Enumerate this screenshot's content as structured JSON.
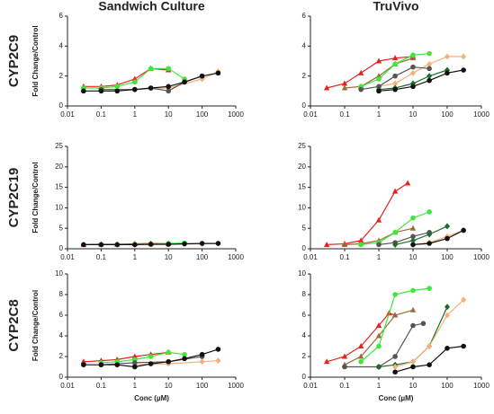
{
  "chart_data": [
    {
      "type": "line",
      "title": "Sandwich Culture",
      "row_label": "CYP2C9",
      "ylabel": "Fold Change/Control",
      "log_x": true,
      "xlim": [
        0.01,
        1000
      ],
      "xticks": [
        0.01,
        0.1,
        1,
        10,
        100,
        1000
      ],
      "ylim": [
        0,
        6
      ],
      "yticks": [
        0,
        2,
        4,
        6
      ],
      "series": [
        {
          "color": "#e8231f",
          "marker": "triangle",
          "x": [
            0.03,
            0.1,
            0.3,
            1,
            3,
            10
          ],
          "values": [
            1.3,
            1.3,
            1.4,
            1.8,
            2.5,
            2.4
          ]
        },
        {
          "color": "#3ee83a",
          "marker": "circle",
          "x": [
            0.03,
            0.1,
            0.3,
            1,
            3,
            10,
            30
          ],
          "values": [
            1.2,
            1.2,
            1.3,
            1.6,
            2.5,
            2.5,
            1.8
          ]
        },
        {
          "color": "#f4b27a",
          "marker": "diamond",
          "x": [
            0.1,
            1,
            10,
            100,
            300
          ],
          "values": [
            1.1,
            1.1,
            1.2,
            1.8,
            2.3
          ]
        },
        {
          "color": "#555555",
          "marker": "circle",
          "x": [
            0.1,
            1,
            3,
            10,
            30,
            100
          ],
          "values": [
            1.1,
            1.1,
            1.2,
            1.0,
            1.6,
            2.0
          ]
        },
        {
          "color": "#111111",
          "marker": "circle",
          "x": [
            0.03,
            0.1,
            0.3,
            1,
            3,
            10,
            30,
            100,
            300
          ],
          "values": [
            1.0,
            1.0,
            1.0,
            1.1,
            1.2,
            1.3,
            1.6,
            2.0,
            2.2
          ]
        }
      ]
    },
    {
      "type": "line",
      "title": "TruVivo",
      "log_x": true,
      "xlim": [
        0.01,
        1000
      ],
      "xticks": [
        0.01,
        0.1,
        1,
        10,
        100,
        1000
      ],
      "ylim": [
        0,
        6
      ],
      "yticks": [
        0,
        2,
        4,
        6
      ],
      "series": [
        {
          "color": "#e8231f",
          "marker": "triangle",
          "x": [
            0.03,
            0.1,
            0.3,
            1,
            3,
            10
          ],
          "values": [
            1.2,
            1.5,
            2.2,
            3.0,
            3.2,
            3.3
          ]
        },
        {
          "color": "#9c6a3a",
          "marker": "triangle",
          "x": [
            0.1,
            0.3,
            1,
            3,
            10
          ],
          "values": [
            1.2,
            1.3,
            2.0,
            2.8,
            3.2
          ]
        },
        {
          "color": "#3ee83a",
          "marker": "circle",
          "x": [
            0.3,
            1,
            3,
            10,
            30
          ],
          "values": [
            1.3,
            1.8,
            2.8,
            3.4,
            3.5
          ]
        },
        {
          "color": "#f4b27a",
          "marker": "diamond",
          "x": [
            1,
            3,
            10,
            30,
            100,
            300
          ],
          "values": [
            1.3,
            1.5,
            2.2,
            2.8,
            3.3,
            3.3
          ]
        },
        {
          "color": "#555555",
          "marker": "circle",
          "x": [
            0.3,
            1,
            3,
            10,
            30
          ],
          "values": [
            1.1,
            1.3,
            2.0,
            2.6,
            2.5
          ]
        },
        {
          "color": "#1d6b2a",
          "marker": "diamond",
          "x": [
            1,
            3,
            10,
            30,
            100
          ],
          "values": [
            1.1,
            1.2,
            1.5,
            2.0,
            2.4
          ]
        },
        {
          "color": "#111111",
          "marker": "circle",
          "x": [
            1,
            3,
            10,
            30,
            100,
            300
          ],
          "values": [
            1.0,
            1.1,
            1.3,
            1.7,
            2.2,
            2.4
          ]
        }
      ]
    },
    {
      "type": "line",
      "row_label": "CYP2C19",
      "ylabel": "Fold Change/Control",
      "log_x": true,
      "xlim": [
        0.01,
        1000
      ],
      "xticks": [
        0.01,
        0.1,
        1,
        10,
        100,
        1000
      ],
      "ylim": [
        0,
        25
      ],
      "yticks": [
        0,
        5,
        10,
        15,
        20,
        25
      ],
      "series": [
        {
          "color": "#e8231f",
          "marker": "triangle",
          "x": [
            0.03,
            0.1,
            0.3,
            1,
            3,
            10
          ],
          "values": [
            1.0,
            1.1,
            1.1,
            1.2,
            1.3,
            1.3
          ]
        },
        {
          "color": "#3ee83a",
          "marker": "circle",
          "x": [
            0.1,
            0.3,
            1,
            3,
            10,
            30
          ],
          "values": [
            1.0,
            1.0,
            1.1,
            1.2,
            1.3,
            1.4
          ]
        },
        {
          "color": "#f4b27a",
          "marker": "diamond",
          "x": [
            1,
            10,
            100,
            300
          ],
          "values": [
            1.0,
            1.1,
            1.2,
            1.3
          ]
        },
        {
          "color": "#111111",
          "marker": "circle",
          "x": [
            0.03,
            0.1,
            0.3,
            1,
            3,
            10,
            30,
            100,
            300
          ],
          "values": [
            1.0,
            1.0,
            1.0,
            1.0,
            1.1,
            1.1,
            1.2,
            1.3,
            1.3
          ]
        }
      ]
    },
    {
      "type": "line",
      "log_x": true,
      "xlim": [
        0.01,
        1000
      ],
      "xticks": [
        0.01,
        0.1,
        1,
        10,
        100,
        1000
      ],
      "ylim": [
        0,
        25
      ],
      "yticks": [
        0,
        5,
        10,
        15,
        20,
        25
      ],
      "series": [
        {
          "color": "#e8231f",
          "marker": "triangle",
          "x": [
            0.03,
            0.1,
            0.3,
            1,
            3,
            7
          ],
          "values": [
            1.0,
            1.2,
            2.0,
            7.0,
            14.0,
            16.0
          ]
        },
        {
          "color": "#9c6a3a",
          "marker": "triangle",
          "x": [
            0.1,
            0.3,
            1,
            3,
            10
          ],
          "values": [
            1.0,
            1.2,
            2.0,
            4.0,
            5.0
          ]
        },
        {
          "color": "#3ee83a",
          "marker": "circle",
          "x": [
            0.3,
            1,
            3,
            10,
            30
          ],
          "values": [
            1.0,
            1.5,
            4.0,
            7.5,
            9.0
          ]
        },
        {
          "color": "#555555",
          "marker": "circle",
          "x": [
            1,
            3,
            10,
            30
          ],
          "values": [
            1.0,
            1.5,
            3.0,
            4.0
          ]
        },
        {
          "color": "#1d6b2a",
          "marker": "diamond",
          "x": [
            3,
            10,
            30,
            100
          ],
          "values": [
            1.0,
            2.0,
            3.5,
            5.5
          ]
        },
        {
          "color": "#f4b27a",
          "marker": "diamond",
          "x": [
            10,
            30,
            100,
            300
          ],
          "values": [
            1.0,
            1.5,
            3.0,
            4.5
          ]
        },
        {
          "color": "#111111",
          "marker": "circle",
          "x": [
            10,
            30,
            100,
            300
          ],
          "values": [
            1.0,
            1.3,
            2.5,
            4.5
          ]
        }
      ]
    },
    {
      "type": "line",
      "row_label": "CYP2C8",
      "ylabel": "Fold Change/Control",
      "xlabel": "Conc (µM)",
      "log_x": true,
      "xlim": [
        0.01,
        1000
      ],
      "xticks": [
        0.01,
        0.1,
        1,
        10,
        100,
        1000
      ],
      "ylim": [
        0,
        10
      ],
      "yticks": [
        0,
        2,
        4,
        6,
        8,
        10
      ],
      "series": [
        {
          "color": "#e8231f",
          "marker": "triangle",
          "x": [
            0.03,
            0.1,
            0.3,
            1,
            3,
            10
          ],
          "values": [
            1.5,
            1.6,
            1.7,
            2.0,
            2.2,
            2.4
          ]
        },
        {
          "color": "#3ee83a",
          "marker": "circle",
          "x": [
            0.1,
            0.3,
            1,
            3,
            10,
            30
          ],
          "values": [
            1.4,
            1.5,
            1.7,
            2.0,
            2.4,
            2.2
          ]
        },
        {
          "color": "#f4b27a",
          "marker": "diamond",
          "x": [
            1,
            10,
            100,
            300
          ],
          "values": [
            1.2,
            1.3,
            1.5,
            1.6
          ]
        },
        {
          "color": "#555555",
          "marker": "circle",
          "x": [
            0.1,
            1,
            10,
            100
          ],
          "values": [
            1.2,
            1.4,
            1.5,
            2.0
          ]
        },
        {
          "color": "#111111",
          "marker": "circle",
          "x": [
            0.03,
            0.1,
            0.3,
            1,
            3,
            10,
            30,
            100,
            300
          ],
          "values": [
            1.2,
            1.2,
            1.2,
            1.0,
            1.3,
            1.5,
            1.8,
            2.2,
            2.7
          ]
        }
      ]
    },
    {
      "type": "line",
      "xlabel": "Conc (µM)",
      "log_x": true,
      "xlim": [
        0.01,
        1000
      ],
      "xticks": [
        0.01,
        0.1,
        1,
        10,
        100,
        1000
      ],
      "ylim": [
        0,
        10
      ],
      "yticks": [
        0,
        2,
        4,
        6,
        8,
        10
      ],
      "series": [
        {
          "color": "#e8231f",
          "marker": "triangle",
          "x": [
            0.03,
            0.1,
            0.3,
            1,
            2,
            3
          ],
          "values": [
            1.5,
            2.0,
            3.0,
            5.0,
            6.2,
            6.0
          ]
        },
        {
          "color": "#9c6a3a",
          "marker": "triangle",
          "x": [
            0.1,
            0.3,
            1,
            3,
            10
          ],
          "values": [
            1.2,
            2.0,
            4.0,
            6.0,
            6.5
          ]
        },
        {
          "color": "#3ee83a",
          "marker": "circle",
          "x": [
            0.3,
            1,
            3,
            10,
            30
          ],
          "values": [
            1.5,
            3.0,
            8.0,
            8.4,
            8.6
          ]
        },
        {
          "color": "#555555",
          "marker": "circle",
          "x": [
            0.1,
            1,
            3,
            10,
            20
          ],
          "values": [
            1.0,
            1.0,
            2.0,
            5.0,
            5.2
          ]
        },
        {
          "color": "#1d6b2a",
          "marker": "diamond",
          "x": [
            1,
            3,
            10,
            30,
            100
          ],
          "values": [
            1.0,
            1.2,
            1.5,
            3.0,
            6.8
          ]
        },
        {
          "color": "#f4b27a",
          "marker": "diamond",
          "x": [
            3,
            10,
            30,
            100,
            300
          ],
          "values": [
            1.0,
            1.5,
            3.0,
            6.0,
            7.5
          ]
        },
        {
          "color": "#111111",
          "marker": "circle",
          "x": [
            3,
            10,
            30,
            100,
            300
          ],
          "values": [
            0.5,
            1.0,
            1.2,
            2.8,
            3.0
          ]
        }
      ]
    }
  ]
}
